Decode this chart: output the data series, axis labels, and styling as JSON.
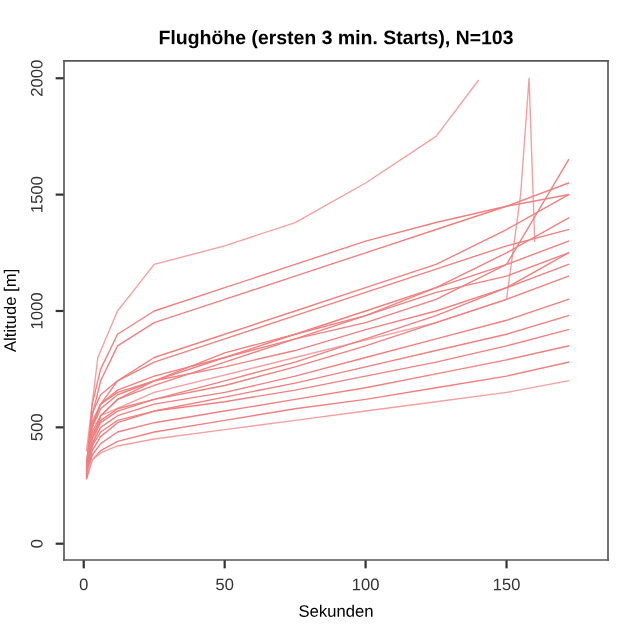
{
  "chart_data": {
    "type": "line",
    "title": "Flughöhe (ersten 3 min. Starts), N=103",
    "xlabel": "Sekunden",
    "ylabel": "Altitude [m]",
    "x": [
      1,
      3,
      6,
      12,
      25,
      50,
      75,
      100,
      125,
      150,
      172
    ],
    "xlim": [
      -7,
      186
    ],
    "xticks": [
      0,
      50,
      100,
      150
    ],
    "ylim": [
      -70,
      2075
    ],
    "yticks": [
      0,
      500,
      1000,
      1500,
      2000
    ],
    "grid": false,
    "marker": "none",
    "line_style": "solid",
    "series": [
      {
        "color": "#f4a0a0",
        "x": [
          1,
          5,
          12,
          25,
          50,
          75,
          100,
          125,
          140
        ],
        "values": [
          400,
          800,
          1000,
          1200,
          1280,
          1380,
          1550,
          1750,
          1990
        ]
      },
      {
        "color": "#f4a0a0",
        "x": [
          1,
          6,
          25,
          75,
          125,
          150,
          155,
          158,
          160
        ],
        "values": [
          320,
          550,
          650,
          800,
          950,
          1050,
          1500,
          2000,
          1300
        ]
      },
      {
        "color": "#f08080",
        "values": [
          330,
          550,
          700,
          850,
          950,
          1050,
          1150,
          1250,
          1350,
          1450,
          1550
        ]
      },
      {
        "color": "#f08080",
        "values": [
          300,
          500,
          600,
          700,
          800,
          900,
          1000,
          1100,
          1200,
          1350,
          1500
        ]
      },
      {
        "color": "#f08080",
        "values": [
          320,
          480,
          550,
          620,
          680,
          780,
          880,
          980,
          1100,
          1250,
          1400
        ]
      },
      {
        "color": "#f08080",
        "values": [
          290,
          450,
          520,
          570,
          620,
          700,
          780,
          880,
          980,
          1100,
          1250
        ]
      },
      {
        "color": "#f08080",
        "values": [
          310,
          470,
          530,
          580,
          620,
          680,
          760,
          850,
          950,
          1050,
          1150
        ]
      },
      {
        "color": "#f08080",
        "values": [
          300,
          430,
          500,
          550,
          600,
          650,
          720,
          800,
          880,
          960,
          1050
        ]
      },
      {
        "color": "#f08080",
        "values": [
          280,
          400,
          460,
          520,
          570,
          630,
          690,
          760,
          830,
          900,
          980
        ]
      },
      {
        "color": "#f08080",
        "values": [
          300,
          420,
          480,
          530,
          570,
          610,
          660,
          720,
          780,
          850,
          920
        ]
      },
      {
        "color": "#f08080",
        "values": [
          290,
          380,
          430,
          480,
          520,
          570,
          620,
          670,
          730,
          790,
          850
        ]
      },
      {
        "color": "#f08080",
        "values": [
          280,
          360,
          400,
          440,
          480,
          530,
          580,
          620,
          670,
          720,
          780
        ]
      },
      {
        "color": "#f4a0a0",
        "values": [
          300,
          360,
          390,
          420,
          450,
          490,
          530,
          570,
          610,
          650,
          700
        ]
      },
      {
        "color": "#f08080",
        "values": [
          320,
          520,
          600,
          650,
          700,
          760,
          830,
          920,
          1000,
          1100,
          1200
        ]
      },
      {
        "color": "#f08080",
        "values": [
          340,
          560,
          640,
          700,
          780,
          880,
          980,
          1080,
          1180,
          1280,
          1350
        ]
      },
      {
        "color": "#f08080",
        "values": [
          310,
          500,
          580,
          640,
          700,
          820,
          900,
          980,
          1080,
          1150,
          1250
        ]
      },
      {
        "color": "#f08080",
        "values": [
          330,
          600,
          750,
          900,
          1000,
          1100,
          1200,
          1300,
          1380,
          1450,
          1500
        ]
      },
      {
        "color": "#f08080",
        "values": [
          350,
          520,
          600,
          660,
          720,
          800,
          880,
          950,
          1050,
          1200,
          1650
        ]
      },
      {
        "color": "#f08080",
        "values": [
          300,
          450,
          550,
          620,
          700,
          800,
          900,
          1000,
          1100,
          1200,
          1300
        ]
      }
    ]
  }
}
